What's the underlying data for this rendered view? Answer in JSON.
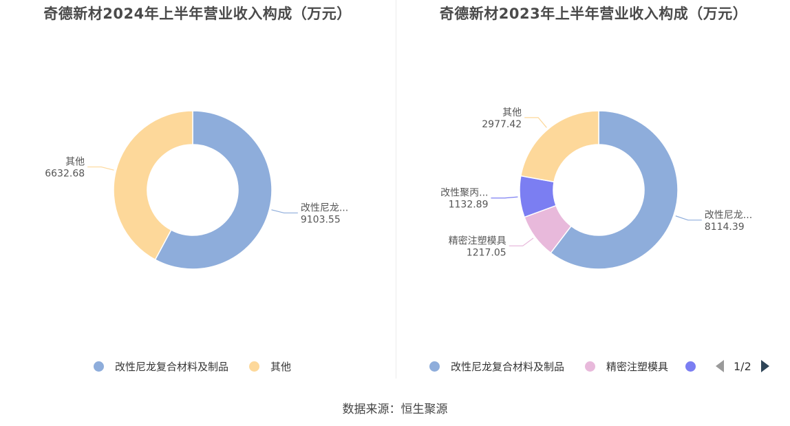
{
  "chart_data": [
    {
      "type": "pie",
      "title": "奇德新材2024年上半年营业收入构成（万元）",
      "categories": [
        "改性尼龙复合材料及制品",
        "其他"
      ],
      "display_labels": [
        "改性尼龙...",
        "其他"
      ],
      "values": [
        9103.55,
        6632.68
      ],
      "value_labels": [
        "9103.55",
        "6632.68"
      ],
      "colors": [
        "#8eaddb",
        "#fdd89a"
      ],
      "legend_position": "bottom",
      "donut": true
    },
    {
      "type": "pie",
      "title": "奇德新材2023年上半年营业收入构成（万元）",
      "categories": [
        "改性尼龙复合材料及制品",
        "精密注塑模具",
        "改性聚丙烯",
        "其他"
      ],
      "display_labels": [
        "改性尼龙...",
        "精密注塑模具",
        "改性聚丙...",
        "其他"
      ],
      "values": [
        8114.39,
        1217.05,
        1132.89,
        2977.42
      ],
      "value_labels": [
        "8114.39",
        "1217.05",
        "1132.89",
        "2977.42"
      ],
      "colors": [
        "#8eaddb",
        "#e8b9db",
        "#7b7ef2",
        "#fdd89a"
      ],
      "legend_position": "bottom",
      "donut": true
    }
  ],
  "legend_left": [
    {
      "label": "改性尼龙复合材料及制品",
      "color": "#8eaddb"
    },
    {
      "label": "其他",
      "color": "#fdd89a"
    }
  ],
  "legend_right": [
    {
      "label": "改性尼龙复合材料及制品",
      "color": "#8eaddb"
    },
    {
      "label": "精密注塑模具",
      "color": "#e8b9db"
    },
    {
      "label": "",
      "color": "#7b7ef2"
    }
  ],
  "pager": {
    "text": "1/2"
  },
  "source": "数据来源：恒生聚源"
}
